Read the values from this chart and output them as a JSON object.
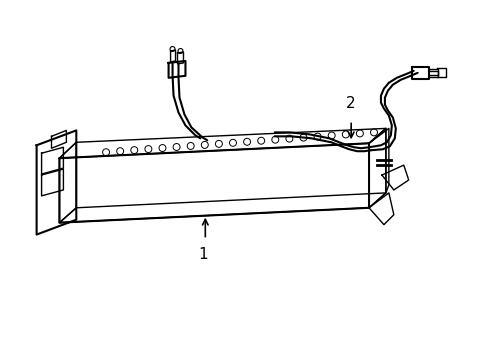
{
  "title": "",
  "background_color": "#ffffff",
  "line_color": "#000000",
  "label_color": "#000000",
  "label_1": "1",
  "label_2": "2",
  "figsize": [
    4.89,
    3.6
  ],
  "dpi": 100
}
